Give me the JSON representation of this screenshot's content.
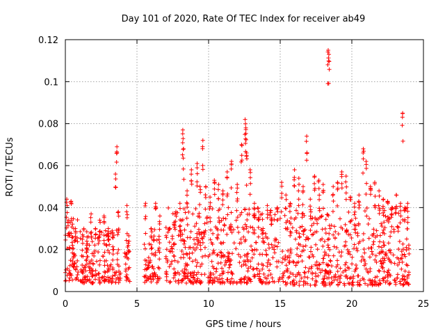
{
  "chart_data": {
    "type": "scatter",
    "title": "Day 101 of 2020, Rate Of TEC Index for receiver ab49",
    "xlabel": "GPS time / hours",
    "ylabel": "ROTI / TECUs",
    "xlim": [
      0,
      25
    ],
    "ylim": [
      0,
      0.12
    ],
    "xticks": [
      0,
      5,
      10,
      15,
      20,
      25
    ],
    "xtick_labels": [
      "0",
      "5",
      "10",
      "15",
      "20",
      "25"
    ],
    "yticks": [
      0,
      0.02,
      0.04,
      0.06,
      0.08,
      0.1,
      0.12
    ],
    "ytick_labels": [
      "0",
      "0.02",
      "0.04",
      "0.06",
      "0.08",
      "0.1",
      "0.12"
    ],
    "grid": true,
    "legend": "none",
    "marker": "+",
    "color": "#ff0000",
    "series": [
      {
        "x": [
          0.1,
          0.2,
          0.3,
          0.4,
          0.5,
          0.6,
          0.7,
          1.2,
          1.5,
          1.8,
          2.1,
          2.4,
          2.7,
          3.0,
          3.3,
          3.5,
          3.6,
          3.7,
          4.3,
          4.4,
          5.6,
          6.0,
          6.3,
          6.6,
          7.3,
          7.6,
          8.0,
          8.2,
          8.25,
          8.5,
          8.8,
          9.2,
          9.4,
          9.6,
          9.8,
          10.1,
          10.4,
          10.7,
          11.0,
          11.3,
          11.6,
          12.0,
          12.3,
          12.55,
          12.6,
          12.65,
          12.9,
          13.2,
          13.5,
          13.8,
          14.1,
          14.4,
          14.8,
          15.1,
          15.4,
          15.7,
          16.0,
          16.3,
          16.6,
          16.85,
          17.1,
          17.4,
          17.7,
          18.0,
          18.35,
          18.4,
          18.7,
          19.0,
          19.3,
          19.6,
          19.9,
          20.2,
          20.5,
          20.8,
          21.0,
          21.3,
          21.6,
          21.9,
          22.2,
          22.5,
          22.8,
          23.1,
          23.4,
          23.55,
          23.7,
          23.9
        ],
        "y": [
          0.044,
          0.034,
          0.028,
          0.043,
          0.022,
          0.018,
          0.03,
          0.027,
          0.024,
          0.037,
          0.03,
          0.034,
          0.036,
          0.03,
          0.028,
          0.056,
          0.069,
          0.038,
          0.041,
          0.022,
          0.042,
          0.03,
          0.042,
          0.036,
          0.03,
          0.033,
          0.042,
          0.077,
          0.068,
          0.048,
          0.058,
          0.061,
          0.05,
          0.072,
          0.05,
          0.045,
          0.053,
          0.051,
          0.048,
          0.057,
          0.062,
          0.051,
          0.07,
          0.082,
          0.078,
          0.066,
          0.058,
          0.042,
          0.038,
          0.03,
          0.041,
          0.035,
          0.04,
          0.052,
          0.046,
          0.042,
          0.058,
          0.054,
          0.05,
          0.074,
          0.044,
          0.055,
          0.053,
          0.051,
          0.115,
          0.113,
          0.05,
          0.052,
          0.057,
          0.055,
          0.045,
          0.042,
          0.046,
          0.068,
          0.062,
          0.05,
          0.052,
          0.048,
          0.044,
          0.043,
          0.04,
          0.046,
          0.042,
          0.085,
          0.04,
          0.042
        ]
      }
    ],
    "dense_band_segments": [
      {
        "x_range": [
          0.0,
          0.9
        ],
        "y_range": [
          0.005,
          0.035
        ]
      },
      {
        "x_range": [
          1.0,
          3.9
        ],
        "y_range": [
          0.004,
          0.03
        ]
      },
      {
        "x_range": [
          4.1,
          4.5
        ],
        "y_range": [
          0.004,
          0.03
        ]
      },
      {
        "x_range": [
          5.5,
          6.6
        ],
        "y_range": [
          0.004,
          0.03
        ]
      },
      {
        "x_range": [
          7.0,
          15.0
        ],
        "y_range": [
          0.004,
          0.04
        ]
      },
      {
        "x_range": [
          15.1,
          24.0
        ],
        "y_range": [
          0.003,
          0.04
        ]
      }
    ]
  }
}
